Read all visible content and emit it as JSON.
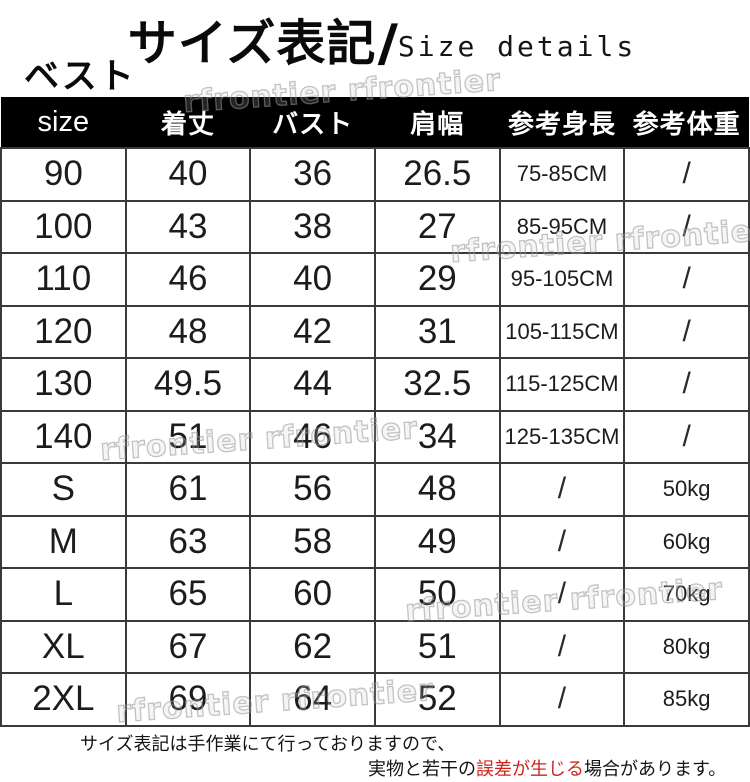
{
  "title": {
    "jp": "サイズ表記",
    "slash": "/",
    "en": "Size details"
  },
  "category_label": "ベスト",
  "watermark_text": "rfrontier rfrontier",
  "colors": {
    "header_bg": "#000000",
    "header_text": "#ffffff",
    "border": "#3a3a3a",
    "accent_red": "#cf241c",
    "watermark_gray": "#b4b4b4"
  },
  "table": {
    "headers": [
      "size",
      "着丈",
      "バスト",
      "肩幅",
      "参考身長",
      "参考体重"
    ],
    "rows": [
      [
        "90",
        "40",
        "36",
        "26.5",
        "75-85CM",
        "/"
      ],
      [
        "100",
        "43",
        "38",
        "27",
        "85-95CM",
        "/"
      ],
      [
        "110",
        "46",
        "40",
        "29",
        "95-105CM",
        "/"
      ],
      [
        "120",
        "48",
        "42",
        "31",
        "105-115CM",
        "/"
      ],
      [
        "130",
        "49.5",
        "44",
        "32.5",
        "115-125CM",
        "/"
      ],
      [
        "140",
        "51",
        "46",
        "34",
        "125-135CM",
        "/"
      ],
      [
        "S",
        "61",
        "56",
        "48",
        "/",
        "50kg"
      ],
      [
        "M",
        "63",
        "58",
        "49",
        "/",
        "60kg"
      ],
      [
        "L",
        "65",
        "60",
        "50",
        "/",
        "70kg"
      ],
      [
        "XL",
        "67",
        "62",
        "51",
        "/",
        "80kg"
      ],
      [
        "2XL",
        "69",
        "64",
        "52",
        "/",
        "85kg"
      ]
    ]
  },
  "footnote": {
    "line1": "サイズ表記は手作業にて行っておりますので、",
    "line2_before": "実物と若干の",
    "line2_red": "誤差が生じる",
    "line2_after": "場合があります。"
  }
}
